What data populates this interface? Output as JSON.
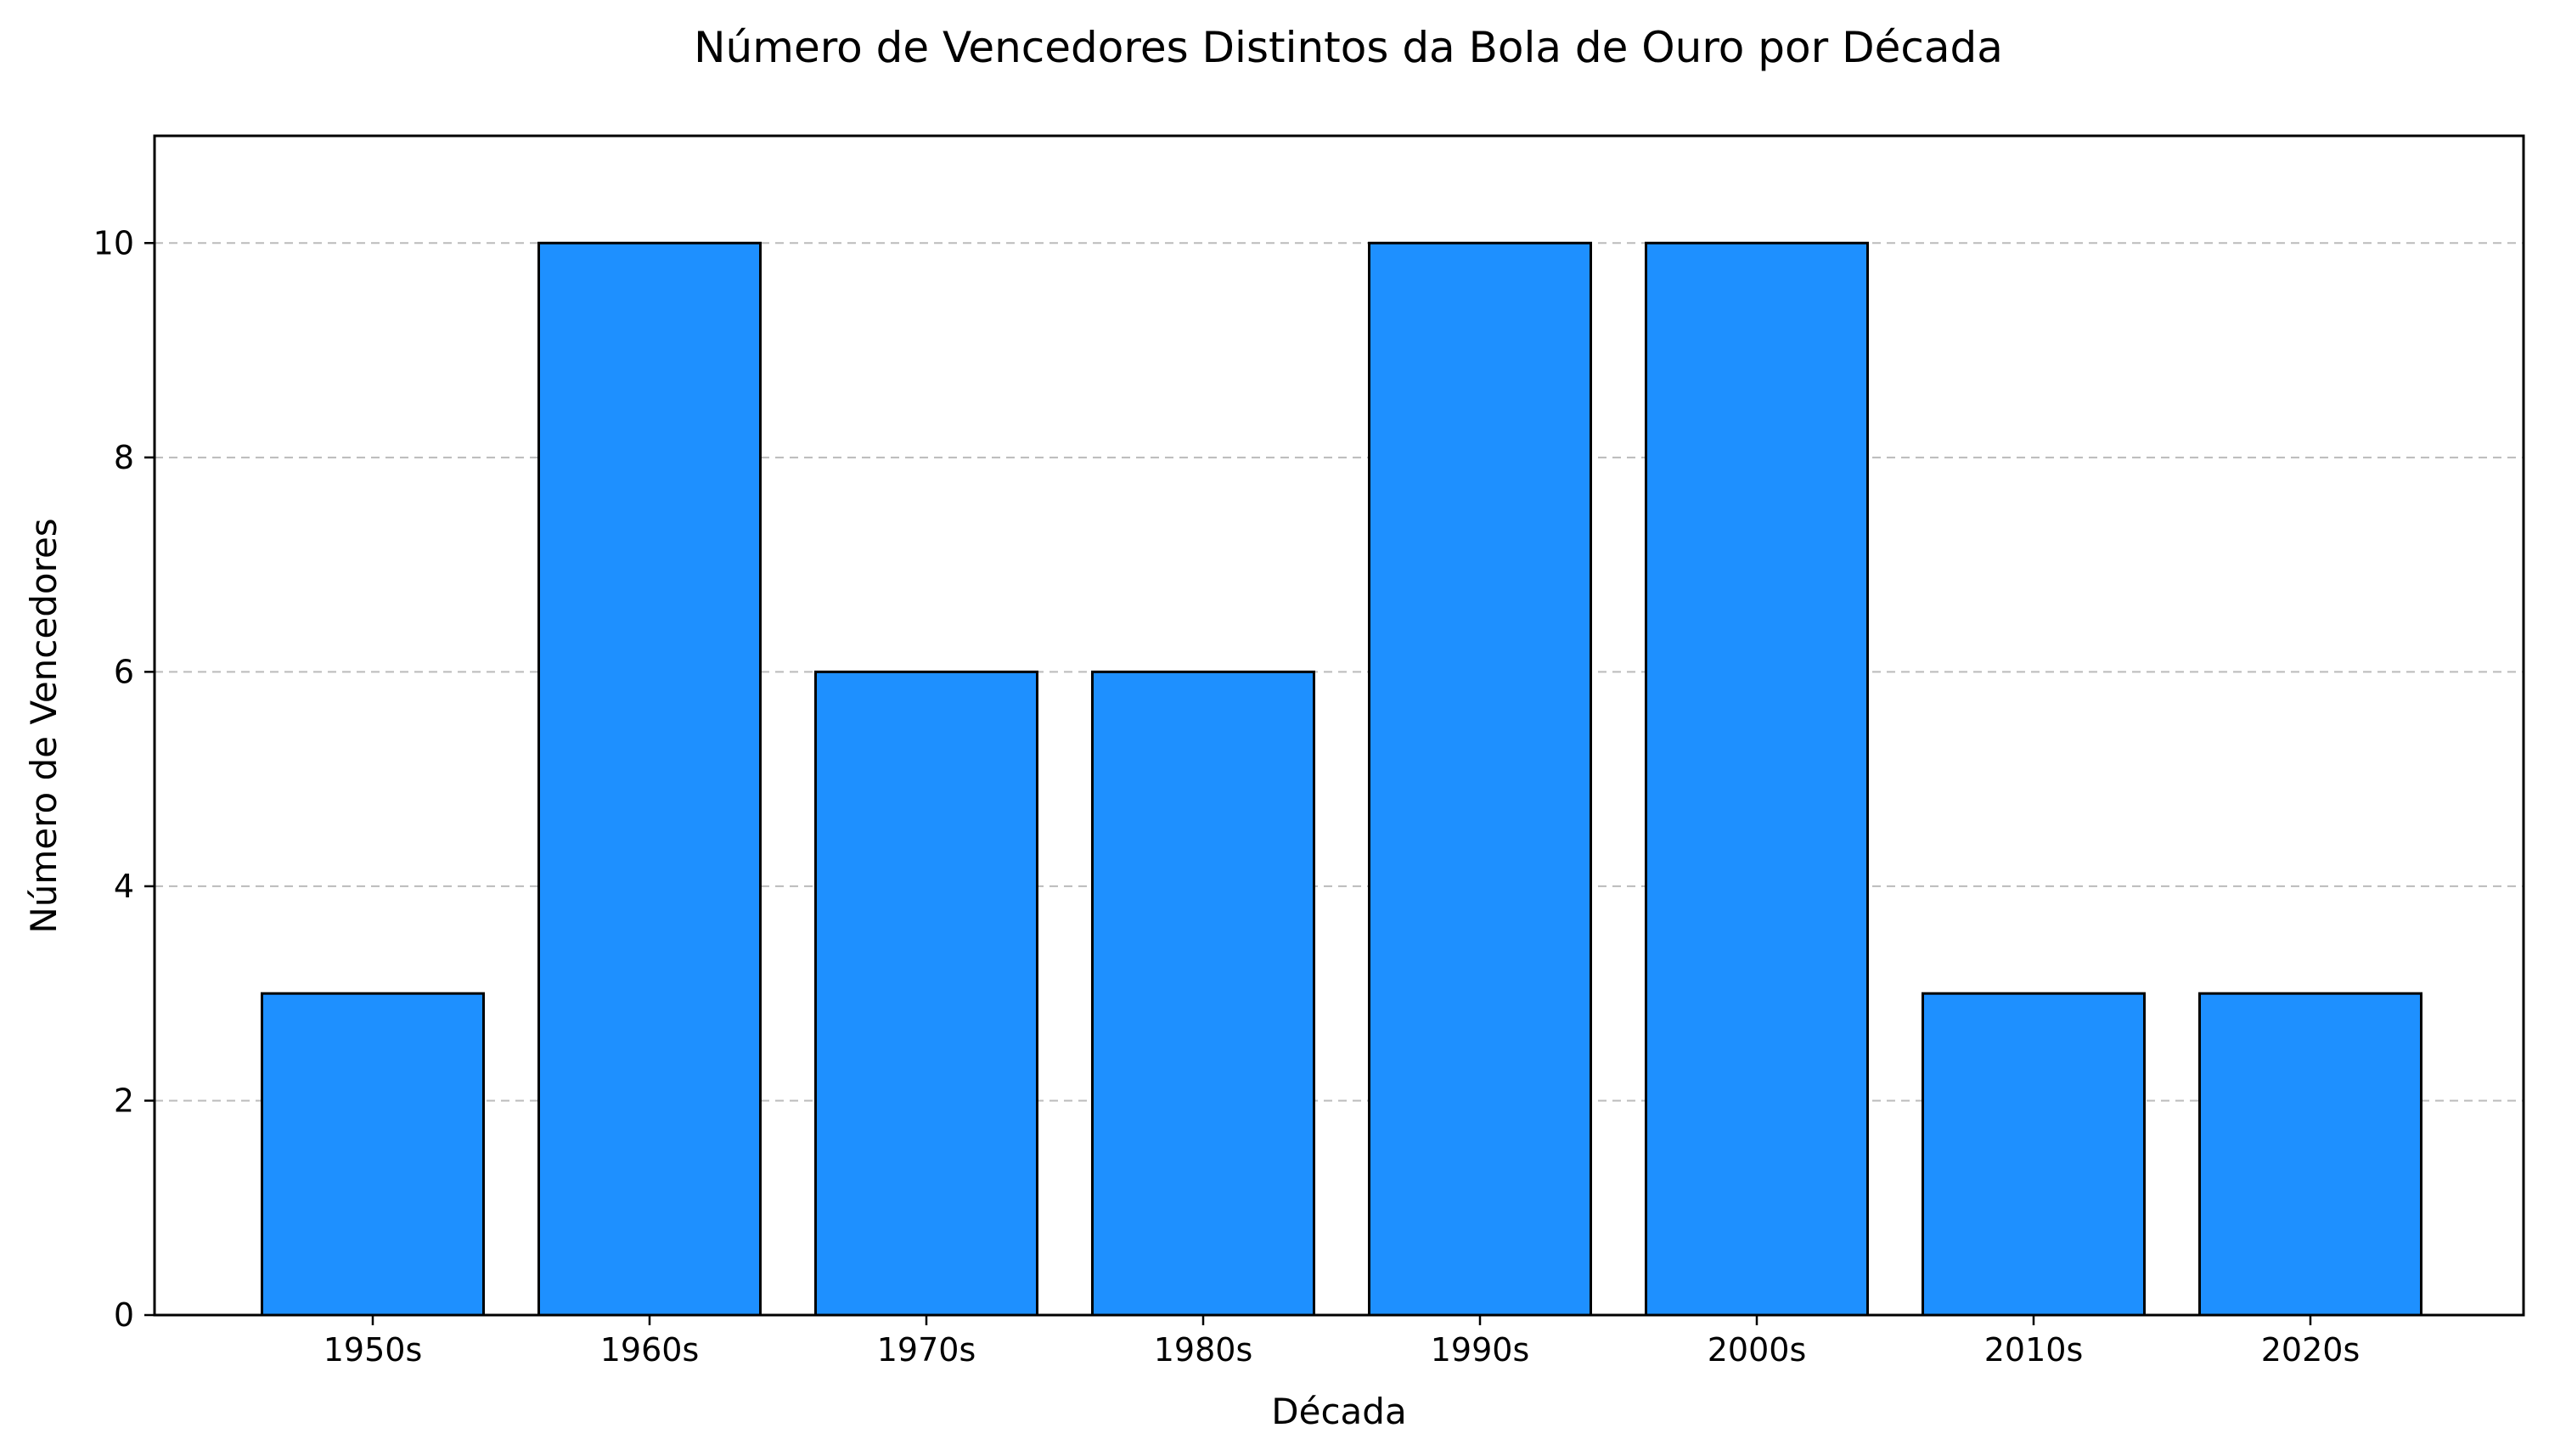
{
  "chart_data": {
    "type": "bar",
    "title": "Número de Vencedores Distintos da Bola de Ouro por Década",
    "xlabel": "Década",
    "ylabel": "Número de Vencedores",
    "categories": [
      "1950s",
      "1960s",
      "1970s",
      "1980s",
      "1990s",
      "2000s",
      "2010s",
      "2020s"
    ],
    "values": [
      3,
      10,
      6,
      6,
      10,
      10,
      3,
      3
    ],
    "ylim": [
      0,
      11
    ],
    "yticks": [
      0,
      2,
      4,
      6,
      8,
      10
    ],
    "grid": "horizontal dashed",
    "bar_color": "#1e90ff",
    "edge_color": "#000000"
  }
}
